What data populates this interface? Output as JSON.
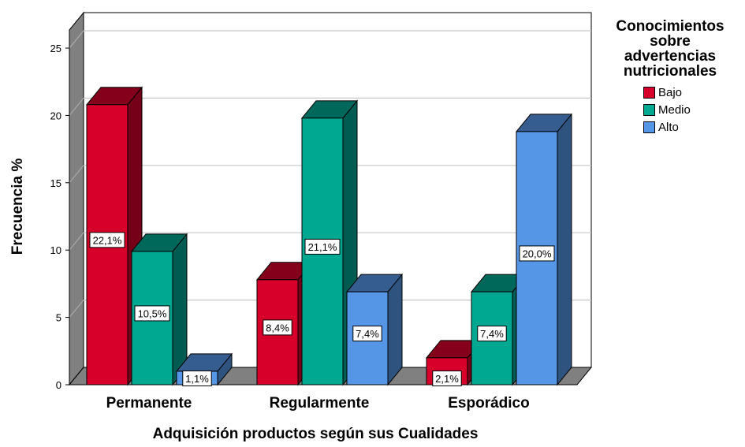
{
  "chart_data": {
    "type": "bar",
    "xlabel": "Adquisición productos según sus Cualidades",
    "ylabel": "Frecuencia %",
    "ylim": [
      0,
      25
    ],
    "yticks": [
      0,
      5,
      10,
      15,
      20,
      25
    ],
    "grid": true,
    "legend_position": "top-right",
    "categories": [
      "Permanente",
      "Regularmente",
      "Esporádico"
    ],
    "series": [
      {
        "name": "Bajo",
        "values": [
          20.8,
          7.8,
          2.0
        ],
        "labels": [
          "22,1%",
          "8,4%",
          "2,1%"
        ],
        "color": "#d6002a"
      },
      {
        "name": "Medio",
        "values": [
          9.9,
          19.8,
          6.9
        ],
        "labels": [
          "10,5%",
          "21,1%",
          "7,4%"
        ],
        "color": "#00a892"
      },
      {
        "name": "Alto",
        "values": [
          1.0,
          6.9,
          18.8
        ],
        "labels": [
          "1,1%",
          "7,4%",
          "20,0%"
        ],
        "color": "#5596e6"
      }
    ]
  },
  "legend": {
    "title_lines": [
      "Conocimientos",
      "sobre",
      "advertencias",
      "nutricionales"
    ]
  }
}
